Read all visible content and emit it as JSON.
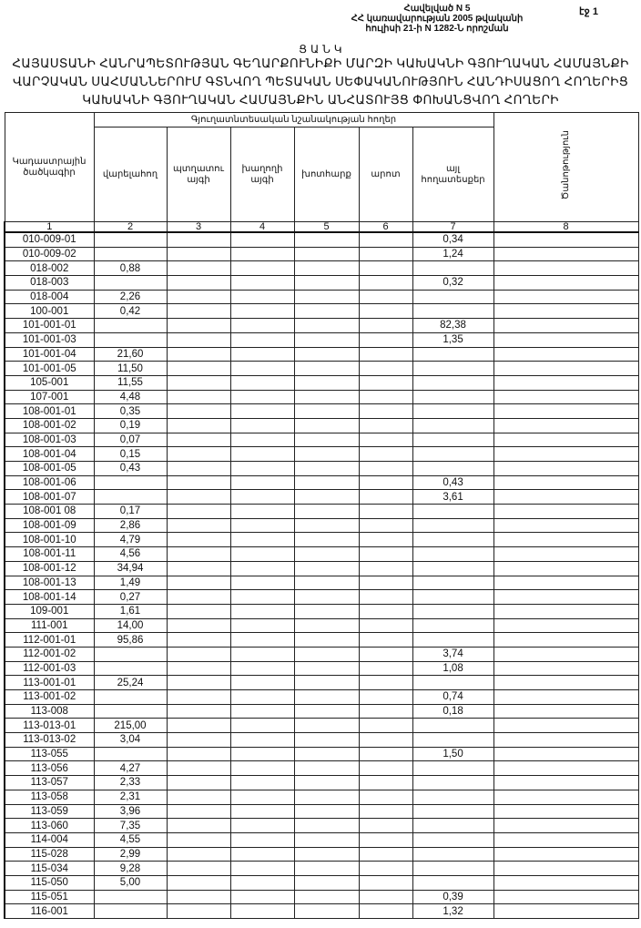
{
  "header": {
    "annex": "Հավելված N 5",
    "line2": "ՀՀ կառավարության 2005 թվականի",
    "line3": "հուլիսի 21-ի N 1282-Ն որոշման",
    "page": "էջ 1"
  },
  "title": {
    "heading": "Ց Ա Ն Կ",
    "line1": "ՀԱՅԱՍՏԱՆԻ ՀԱՆՐԱՊԵՏՈՒԹՅԱՆ ԳԵՂԱՐՔՈՒՆԻՔԻ ՄԱՐԶԻ ԿԱԽԱԿՆԻ ԳՅՈՒՂԱԿԱՆ ՀԱՄԱՅՆՔԻ",
    "line2": "ՎԱՐՉԱԿԱՆ ՍԱՀՄԱՆՆԵՐՈՒՄ ԳՏՆՎՈՂ ՊԵՏԱԿԱՆ ՍԵՓԱԿԱՆՈՒԹՅՈՒՆ ՀԱՆԴԻՍԱՑՈՂ ՀՈՂԵՐԻՑ",
    "line3": "ԿԱԽԱԿՆԻ ԳՅՈՒՂԱԿԱՆ ՀԱՄԱՅՆՔԻՆ ԱՆՀԱՏՈՒՅՑ ՓՈԽԱՆՑՎՈՂ ՀՈՂԵՐԻ"
  },
  "table": {
    "col_cadastral": "Կադաստրային ծածկագիր",
    "group": "Գյուղատնտեսական նշանակության հողեր",
    "cols": [
      "վարելահող",
      "պտղատու այգի",
      "խաղողի այգի",
      "խոտհարք",
      "արոտ",
      "այլ հողատեսքեր"
    ],
    "col_note": "Ծանոթություն",
    "numbers": [
      "1",
      "2",
      "3",
      "4",
      "5",
      "6",
      "7",
      "8"
    ],
    "rows": [
      [
        "010-009-01",
        "",
        "",
        "",
        "",
        "",
        "0,34",
        ""
      ],
      [
        "010-009-02",
        "",
        "",
        "",
        "",
        "",
        "1,24",
        ""
      ],
      [
        "018-002",
        "0,88",
        "",
        "",
        "",
        "",
        "",
        ""
      ],
      [
        "018-003",
        "",
        "",
        "",
        "",
        "",
        "0,32",
        ""
      ],
      [
        "018-004",
        "2,26",
        "",
        "",
        "",
        "",
        "",
        ""
      ],
      [
        "100-001",
        "0,42",
        "",
        "",
        "",
        "",
        "",
        ""
      ],
      [
        "101-001-01",
        "",
        "",
        "",
        "",
        "",
        "82,38",
        ""
      ],
      [
        "101-001-03",
        "",
        "",
        "",
        "",
        "",
        "1,35",
        ""
      ],
      [
        "101-001-04",
        "21,60",
        "",
        "",
        "",
        "",
        "",
        ""
      ],
      [
        "101-001-05",
        "11,50",
        "",
        "",
        "",
        "",
        "",
        ""
      ],
      [
        "105-001",
        "11,55",
        "",
        "",
        "",
        "",
        "",
        ""
      ],
      [
        "107-001",
        "4,48",
        "",
        "",
        "",
        "",
        "",
        ""
      ],
      [
        "108-001-01",
        "0,35",
        "",
        "",
        "",
        "",
        "",
        ""
      ],
      [
        "108-001-02",
        "0,19",
        "",
        "",
        "",
        "",
        "",
        ""
      ],
      [
        "108-001-03",
        "0,07",
        "",
        "",
        "",
        "",
        "",
        ""
      ],
      [
        "108-001-04",
        "0,15",
        "",
        "",
        "",
        "",
        "",
        ""
      ],
      [
        "108-001-05",
        "0,43",
        "",
        "",
        "",
        "",
        "",
        ""
      ],
      [
        "108-001-06",
        "",
        "",
        "",
        "",
        "",
        "0,43",
        ""
      ],
      [
        "108-001-07",
        "",
        "",
        "",
        "",
        "",
        "3,61",
        ""
      ],
      [
        "108-001 08",
        "0,17",
        "",
        "",
        "",
        "",
        "",
        ""
      ],
      [
        "108-001-09",
        "2,86",
        "",
        "",
        "",
        "",
        "",
        ""
      ],
      [
        "108-001-10",
        "4,79",
        "",
        "",
        "",
        "",
        "",
        ""
      ],
      [
        "108-001-11",
        "4,56",
        "",
        "",
        "",
        "",
        "",
        ""
      ],
      [
        "108-001-12",
        "34,94",
        "",
        "",
        "",
        "",
        "",
        ""
      ],
      [
        "108-001-13",
        "1,49",
        "",
        "",
        "",
        "",
        "",
        ""
      ],
      [
        "108-001-14",
        "0,27",
        "",
        "",
        "",
        "",
        "",
        ""
      ],
      [
        "109-001",
        "1,61",
        "",
        "",
        "",
        "",
        "",
        ""
      ],
      [
        "111-001",
        "14,00",
        "",
        "",
        "",
        "",
        "",
        ""
      ],
      [
        "112-001-01",
        "95,86",
        "",
        "",
        "",
        "",
        "",
        ""
      ],
      [
        "112-001-02",
        "",
        "",
        "",
        "",
        "",
        "3,74",
        ""
      ],
      [
        "112-001-03",
        "",
        "",
        "",
        "",
        "",
        "1,08",
        ""
      ],
      [
        "113-001-01",
        "25,24",
        "",
        "",
        "",
        "",
        "",
        ""
      ],
      [
        "113-001-02",
        "",
        "",
        "",
        "",
        "",
        "0,74",
        ""
      ],
      [
        "113-008",
        "",
        "",
        "",
        "",
        "",
        "0,18",
        ""
      ],
      [
        "113-013-01",
        "215,00",
        "",
        "",
        "",
        "",
        "",
        ""
      ],
      [
        "113-013-02",
        "3,04",
        "",
        "",
        "",
        "",
        "",
        ""
      ],
      [
        "113-055",
        "",
        "",
        "",
        "",
        "",
        "1,50",
        ""
      ],
      [
        "113-056",
        "4,27",
        "",
        "",
        "",
        "",
        "",
        ""
      ],
      [
        "113-057",
        "2,33",
        "",
        "",
        "",
        "",
        "",
        ""
      ],
      [
        "113-058",
        "2,31",
        "",
        "",
        "",
        "",
        "",
        ""
      ],
      [
        "113-059",
        "3,96",
        "",
        "",
        "",
        "",
        "",
        ""
      ],
      [
        "113-060",
        "7,35",
        "",
        "",
        "",
        "",
        "",
        ""
      ],
      [
        "114-004",
        "4,55",
        "",
        "",
        "",
        "",
        "",
        ""
      ],
      [
        "115-028",
        "2,99",
        "",
        "",
        "",
        "",
        "",
        ""
      ],
      [
        "115-034",
        "9,28",
        "",
        "",
        "",
        "",
        "",
        ""
      ],
      [
        "115-050",
        "5,00",
        "",
        "",
        "",
        "",
        "",
        ""
      ],
      [
        "115-051",
        "",
        "",
        "",
        "",
        "",
        "0,39",
        ""
      ],
      [
        "116-001",
        "",
        "",
        "",
        "",
        "",
        "1,32",
        ""
      ]
    ]
  }
}
